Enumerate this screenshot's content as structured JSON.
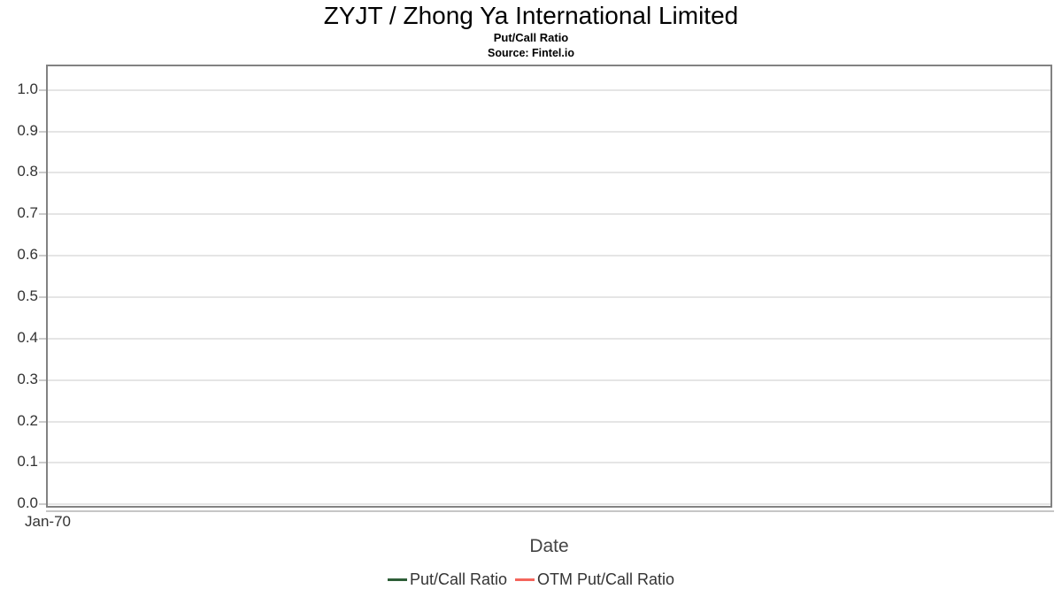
{
  "header": {
    "title": "ZYJT / Zhong Ya International Limited",
    "subtitle": "Put/Call Ratio",
    "source": "Source: Fintel.io"
  },
  "chart_data": {
    "type": "line",
    "title": "ZYJT / Zhong Ya International Limited",
    "subtitle": "Put/Call Ratio",
    "source": "Source: Fintel.io",
    "xlabel": "Date",
    "ylabel": "",
    "ylim": [
      -0.006,
      1.055
    ],
    "yticks": [
      0.0,
      0.1,
      0.2,
      0.3,
      0.4,
      0.5,
      0.6,
      0.7,
      0.8,
      0.9,
      1.0
    ],
    "ytick_labels": [
      "0.0",
      "0.1",
      "0.2",
      "0.3",
      "0.4",
      "0.5",
      "0.6",
      "0.7",
      "0.8",
      "0.9",
      "1.0"
    ],
    "xticks": [
      {
        "label": "Jan-70",
        "position": 0
      }
    ],
    "x": [],
    "series": [
      {
        "name": "Put/Call Ratio",
        "color": "#2e5e38",
        "values": []
      },
      {
        "name": "OTM Put/Call Ratio",
        "color": "#f4655c",
        "values": []
      }
    ],
    "grid": true,
    "legend_position": "bottom",
    "note": "plot area is empty - no data points rendered"
  },
  "colors": {
    "plot_border": "#828282",
    "gridline": "#e5e5e5",
    "tick": "#cccccc",
    "tick_text": "#333333",
    "axis_title_text": "#444444"
  }
}
